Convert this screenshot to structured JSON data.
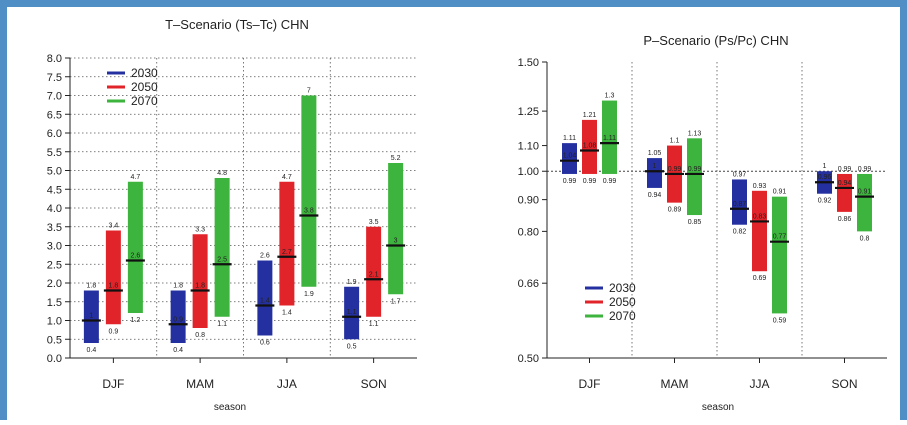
{
  "chart_data": [
    {
      "type": "range-bar",
      "title": "T–Scenario (Ts–Tc) CHN",
      "xlabel": "season",
      "ylabel": "",
      "categories": [
        "DJF",
        "MAM",
        "JJA",
        "SON"
      ],
      "ylim": [
        0,
        8
      ],
      "yticks": [
        "0.0",
        "0.5",
        "1.0",
        "1.5",
        "2.0",
        "2.5",
        "3.0",
        "3.5",
        "4.0",
        "4.5",
        "5.0",
        "5.5",
        "6.0",
        "6.5",
        "7.0",
        "7.5",
        "8.0"
      ],
      "grid": "dotted",
      "legend_position": "top-left",
      "series": [
        {
          "name": "2030",
          "color": "#2430a0",
          "low": [
            0.4,
            0.4,
            0.6,
            0.5
          ],
          "mid": [
            1.0,
            0.9,
            1.4,
            1.1
          ],
          "high": [
            1.8,
            1.8,
            2.6,
            1.9
          ],
          "low_labels": [
            "0.4",
            "0.4",
            "0.6",
            "0.5"
          ],
          "mid_labels": [
            "1",
            "0.9",
            "1.4",
            "1.1"
          ],
          "high_labels": [
            "1.8",
            "1.8",
            "2.6",
            "1.9"
          ]
        },
        {
          "name": "2050",
          "color": "#e0242a",
          "low": [
            0.9,
            0.8,
            1.4,
            1.1
          ],
          "mid": [
            1.8,
            1.8,
            2.7,
            2.1
          ],
          "high": [
            3.4,
            3.3,
            4.7,
            3.5
          ],
          "low_labels": [
            "0.9",
            "0.8",
            "1.4",
            "1.1"
          ],
          "mid_labels": [
            "1.8",
            "1.8",
            "2.7",
            "2.1"
          ],
          "high_labels": [
            "3.4",
            "3.3",
            "4.7",
            "3.5"
          ]
        },
        {
          "name": "2070",
          "color": "#3db43d",
          "low": [
            1.2,
            1.1,
            1.9,
            1.7
          ],
          "mid": [
            2.6,
            2.5,
            3.8,
            3.0
          ],
          "high": [
            4.7,
            4.8,
            7.0,
            5.2
          ],
          "low_labels": [
            "1.2",
            "1.1",
            "1.9",
            "1.7"
          ],
          "mid_labels": [
            "2.6",
            "2.5",
            "3.8",
            "3"
          ],
          "high_labels": [
            "4.7",
            "4.8",
            "7",
            "5.2"
          ]
        }
      ]
    },
    {
      "type": "range-bar",
      "title": "P–Scenario (Ps/Pc) CHN",
      "xlabel": "season",
      "ylabel": "",
      "yscale": "log",
      "categories": [
        "DJF",
        "MAM",
        "JJA",
        "SON"
      ],
      "ylim": [
        0.5,
        1.5
      ],
      "yticks": [
        "1.50",
        "1.25",
        "1.10",
        "1.00",
        "0.90",
        "0.80",
        "0.66",
        "0.50"
      ],
      "reference_line": 1.0,
      "legend_position": "bottom-left",
      "series": [
        {
          "name": "2030",
          "color": "#2430a0",
          "low": [
            0.99,
            0.94,
            0.82,
            0.92
          ],
          "mid": [
            1.04,
            1.0,
            0.87,
            0.96
          ],
          "high": [
            1.11,
            1.05,
            0.97,
            1.0
          ],
          "low_labels": [
            "0.99",
            "0.94",
            "0.82",
            "0.92"
          ],
          "mid_labels": [
            "1.04",
            "1",
            "0.87",
            "0.96"
          ],
          "high_labels": [
            "1.11",
            "1.05",
            "0.97",
            "1"
          ]
        },
        {
          "name": "2050",
          "color": "#e0242a",
          "low": [
            0.99,
            0.89,
            0.69,
            0.86
          ],
          "mid": [
            1.08,
            0.99,
            0.83,
            0.94
          ],
          "high": [
            1.21,
            1.1,
            0.93,
            0.99
          ],
          "low_labels": [
            "0.99",
            "0.89",
            "0.69",
            "0.86"
          ],
          "mid_labels": [
            "1.08",
            "0.99",
            "0.83",
            "0.94"
          ],
          "high_labels": [
            "1.21",
            "1.1",
            "0.93",
            "0.99"
          ]
        },
        {
          "name": "2070",
          "color": "#3db43d",
          "low": [
            0.99,
            0.85,
            0.59,
            0.8
          ],
          "mid": [
            1.11,
            0.99,
            0.77,
            0.91
          ],
          "high": [
            1.3,
            1.13,
            0.91,
            0.99
          ],
          "low_labels": [
            "0.99",
            "0.85",
            "0.59",
            "0.8"
          ],
          "mid_labels": [
            "1.11",
            "0.99",
            "0.77",
            "0.91"
          ],
          "high_labels": [
            "1.3",
            "1.13",
            "0.91",
            "0.99"
          ]
        }
      ]
    }
  ]
}
